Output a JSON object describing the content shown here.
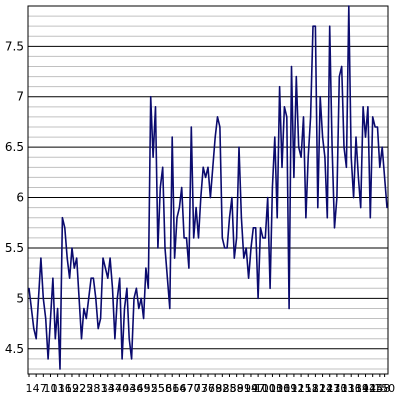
{
  "chart_data": {
    "type": "line",
    "title": "",
    "xlabel": "",
    "ylabel": "",
    "ylim": [
      4.25,
      7.9
    ],
    "y_ticks": [
      "4.5",
      "5",
      "5.5",
      "6",
      "6.5",
      "7",
      "7.5"
    ],
    "y_tick_values": [
      4.5,
      5,
      5.5,
      6,
      6.5,
      7,
      7.5
    ],
    "y_minor_step": 0.1,
    "grid": true,
    "legend": "none",
    "x_ticks": [
      "1",
      "4",
      "7",
      "10",
      "13",
      "16",
      "19",
      "22",
      "25",
      "28",
      "31",
      "34",
      "37",
      "40",
      "43",
      "46",
      "49",
      "52",
      "55",
      "58",
      "61",
      "64",
      "67",
      "70",
      "73",
      "76",
      "79",
      "82",
      "85",
      "88",
      "91",
      "94",
      "97",
      "100",
      "103",
      "106",
      "109",
      "112",
      "115",
      "118",
      "121",
      "124",
      "127",
      "130",
      "133",
      "136",
      "139",
      "142",
      "145",
      "148",
      "150"
    ],
    "colors": {
      "line": "#0b0b6e",
      "major_grid": "#000000",
      "minor_grid": "#c0c0c0",
      "background": "#ffffff"
    },
    "series": [
      {
        "values": [
          5.1,
          4.9,
          4.7,
          4.6,
          5.0,
          5.4,
          5.0,
          4.8,
          4.4,
          4.8,
          5.2,
          4.6,
          4.9,
          4.3,
          5.8,
          5.7,
          5.4,
          5.2,
          5.5,
          5.3,
          5.4,
          5.0,
          4.6,
          4.9,
          4.8,
          5.0,
          5.2,
          5.2,
          5.0,
          4.7,
          4.8,
          5.4,
          5.3,
          5.2,
          5.4,
          5.1,
          4.6,
          5.0,
          5.2,
          4.4,
          4.9,
          5.1,
          4.6,
          4.4,
          5.0,
          5.1,
          4.9,
          5.0,
          4.8,
          5.3,
          5.1,
          7.0,
          6.4,
          6.9,
          5.5,
          6.1,
          6.3,
          5.5,
          5.2,
          4.9,
          6.6,
          5.4,
          5.8,
          5.9,
          6.1,
          5.6,
          5.6,
          5.3,
          6.7,
          5.6,
          5.9,
          5.6,
          6.0,
          6.3,
          6.2,
          6.3,
          6.0,
          6.3,
          6.6,
          6.8,
          6.7,
          5.6,
          5.5,
          5.5,
          5.8,
          6.0,
          5.4,
          5.6,
          6.5,
          5.8,
          5.4,
          5.5,
          5.2,
          5.5,
          5.7,
          5.7,
          5.0,
          5.7,
          5.6,
          5.6,
          6.0,
          5.1,
          6.1,
          6.6,
          5.8,
          7.1,
          6.3,
          6.9,
          6.8,
          4.9,
          7.3,
          6.2,
          7.2,
          6.5,
          6.4,
          6.8,
          5.8,
          6.4,
          6.8,
          7.7,
          7.7,
          5.9,
          7.0,
          6.6,
          6.4,
          5.8,
          7.7,
          6.5,
          5.7,
          6.0,
          7.2,
          7.3,
          6.5,
          6.3,
          7.9,
          6.4,
          6.0,
          6.6,
          6.2,
          5.9,
          6.9,
          6.6,
          6.9,
          5.8,
          6.8,
          6.7,
          6.7,
          6.3,
          6.5,
          6.2,
          5.9
        ]
      }
    ]
  }
}
